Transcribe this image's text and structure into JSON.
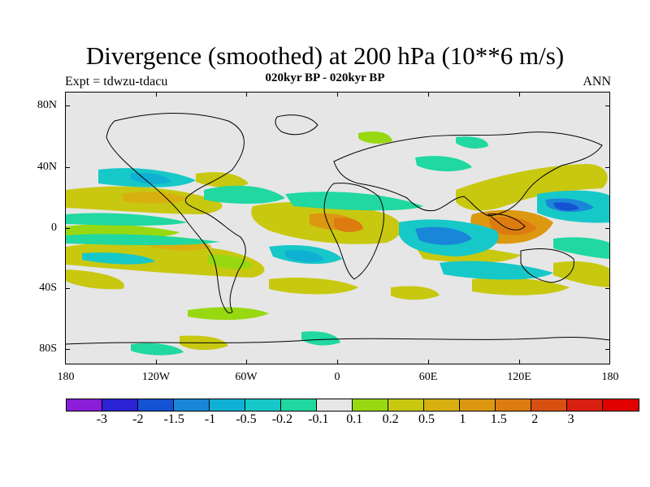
{
  "header": {
    "title": "Divergence (smoothed) at 200 hPa (10**6 m/s)",
    "expt": "Expt = tdwzu-tdacu",
    "subtitle": "020kyr BP - 020kyr BP",
    "season": "ANN"
  },
  "axes": {
    "lat_labels": [
      "80N",
      "40N",
      "0",
      "40S",
      "80S"
    ],
    "lon_labels": [
      "180",
      "120W",
      "60W",
      "0",
      "60E",
      "120E",
      "180"
    ]
  },
  "colorbar": {
    "colors": [
      "#8a1ed8",
      "#2b23d4",
      "#1452d4",
      "#1a86d8",
      "#0fb0d4",
      "#17c8c8",
      "#20d8a0",
      "#e6e6e6",
      "#98d810",
      "#c8c810",
      "#d8b010",
      "#dc9810",
      "#dc7c10",
      "#d85010",
      "#d82010",
      "#e00000"
    ],
    "labels": [
      "-3",
      "-2",
      "-1.5",
      "-1",
      "-0.5",
      "-0.2",
      "-0.1",
      "0.1",
      "0.2",
      "0.5",
      "1",
      "1.5",
      "2",
      "3"
    ]
  },
  "colors": {
    "background": "#e6e6e6",
    "coast": "#000000"
  }
}
